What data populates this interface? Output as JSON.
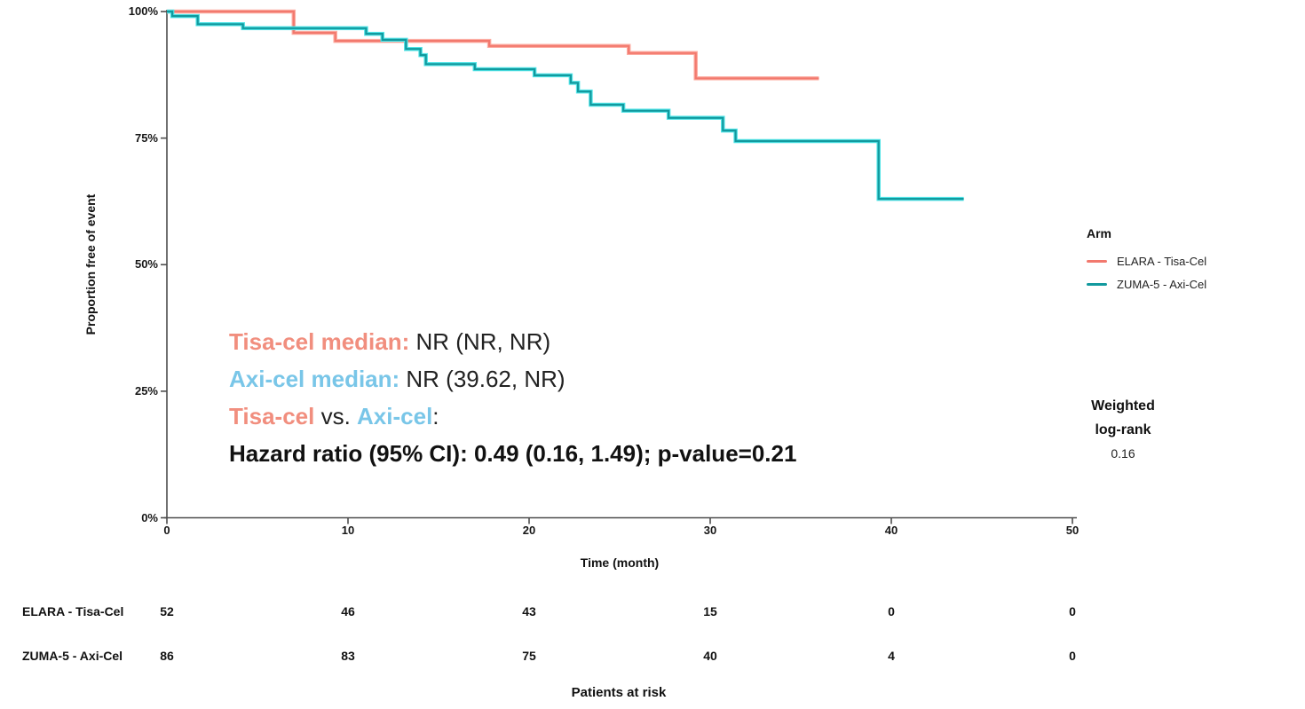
{
  "chart_data": {
    "type": "line",
    "subtype": "kaplan-meier-step",
    "xlabel": "Time (month)",
    "ylabel": "Proportion free of event",
    "xlim": [
      0,
      50
    ],
    "ylim": [
      0,
      100
    ],
    "grid": false,
    "legend_position": "right-outside",
    "x_ticks": [
      0,
      10,
      20,
      30,
      40,
      50
    ],
    "y_ticks": [
      {
        "label": "100%",
        "pct": 100
      },
      {
        "label": "75%",
        "pct": 75
      },
      {
        "label": "50%",
        "pct": 50
      },
      {
        "label": "25%",
        "pct": 25
      },
      {
        "label": "0%",
        "pct": 0
      }
    ],
    "axis_color": "#4d4d4d",
    "series": [
      {
        "name": "ELARA - Tisa-Cel",
        "color": "#f2796e",
        "halo_color": "#fcaca2",
        "end_month": 36,
        "steps": [
          [
            0,
            100
          ],
          [
            7,
            95.8
          ],
          [
            9.3,
            94.2
          ],
          [
            17.8,
            93.2
          ],
          [
            25.5,
            91.8
          ],
          [
            29.2,
            86.8
          ]
        ]
      },
      {
        "name": "ZUMA-5 - Axi-Cel",
        "color": "#12999e",
        "halo_color": "#4fe3e6",
        "end_month": 44,
        "steps": [
          [
            0,
            100
          ],
          [
            0.3,
            99.1
          ],
          [
            1.7,
            97.5
          ],
          [
            4.2,
            96.7
          ],
          [
            11,
            95.6
          ],
          [
            11.9,
            94.4
          ],
          [
            13.2,
            92.6
          ],
          [
            14,
            91.4
          ],
          [
            14.3,
            89.6
          ],
          [
            17,
            88.6
          ],
          [
            20.3,
            87.4
          ],
          [
            22.3,
            85.9
          ],
          [
            22.7,
            84.2
          ],
          [
            23.4,
            81.6
          ],
          [
            25.2,
            80.4
          ],
          [
            27.7,
            79.0
          ],
          [
            30.7,
            76.5
          ],
          [
            31.4,
            74.4
          ],
          [
            39.3,
            63.0
          ]
        ]
      }
    ]
  },
  "legend": {
    "title": "Arm",
    "items": [
      {
        "label": "ELARA - Tisa-Cel",
        "color": "#f2796e"
      },
      {
        "label": "ZUMA-5 - Axi-Cel",
        "color": "#12999e"
      }
    ]
  },
  "annotation": {
    "tisa_label": "Tisa-cel median:",
    "tisa_value": " NR (NR, NR)",
    "axi_label": "Axi-cel median:",
    "axi_value": " NR (39.62, NR)",
    "vs_tisa": "Tisa-cel",
    "vs_mid": " vs. ",
    "vs_axi": "Axi-cel",
    "vs_colon": ":",
    "hr_line": "Hazard ratio (95% CI): 0.49 (0.16, 1.49); p-value=0.21",
    "salmon_color": "#f18e7e",
    "blue_color": "#79c6e8"
  },
  "weighted_logrank": {
    "line1": "Weighted",
    "line2": "log-rank",
    "value": "0.16"
  },
  "risk_table": {
    "title": "Patients at risk",
    "time_points": [
      0,
      10,
      20,
      30,
      40,
      50
    ],
    "rows": [
      {
        "label": "ELARA - Tisa-Cel",
        "counts": [
          "52",
          "46",
          "43",
          "15",
          "0",
          "0"
        ]
      },
      {
        "label": "ZUMA-5 - Axi-Cel",
        "counts": [
          "86",
          "83",
          "75",
          "40",
          "4",
          "0"
        ]
      }
    ]
  }
}
